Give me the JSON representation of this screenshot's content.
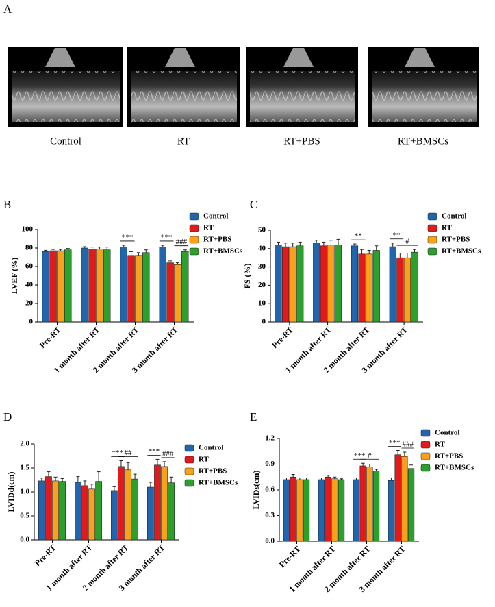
{
  "figure": {
    "label": "A",
    "captions": [
      "Control",
      "RT",
      "RT+PBS",
      "RT+BMSCs"
    ]
  },
  "chart_data": [
    {
      "type": "bar",
      "panel_label": "B",
      "ylabel": "LVEF (%)",
      "ylim": [
        0,
        100
      ],
      "yticks": [
        0,
        20,
        40,
        60,
        80,
        100
      ],
      "categories": [
        "Pre-RT",
        "1 month after RT",
        "2 month after RT",
        "3 month after RT"
      ],
      "series": [
        {
          "name": "Control",
          "color": "#2166ac",
          "values": [
            76,
            80,
            81,
            81
          ],
          "errors": [
            1.5,
            1.5,
            2,
            2
          ]
        },
        {
          "name": "RT",
          "color": "#e31a1c",
          "values": [
            77,
            79,
            72,
            64
          ],
          "errors": [
            1.5,
            2,
            4,
            2
          ]
        },
        {
          "name": "RT+PBS",
          "color": "#f9a11b",
          "values": [
            77,
            79,
            72,
            62
          ],
          "errors": [
            1.5,
            2,
            3,
            2
          ]
        },
        {
          "name": "RT+BMSCs",
          "color": "#2ca02c",
          "values": [
            78,
            78,
            75,
            76
          ],
          "errors": [
            1.5,
            3,
            3,
            2
          ]
        }
      ],
      "annotations": [
        "***",
        "***",
        "###"
      ]
    },
    {
      "type": "bar",
      "panel_label": "C",
      "ylabel": "FS (%)",
      "ylim": [
        0,
        50
      ],
      "yticks": [
        0,
        10,
        20,
        30,
        40,
        50
      ],
      "categories": [
        "Pre-RT",
        "1 month after RT",
        "2 month after RT",
        "3 month after RT"
      ],
      "series": [
        {
          "name": "Control",
          "color": "#2166ac",
          "values": [
            42,
            43,
            41.5,
            41
          ],
          "errors": [
            1.5,
            1.5,
            1,
            2
          ]
        },
        {
          "name": "RT",
          "color": "#e31a1c",
          "values": [
            41,
            41.5,
            37,
            35
          ],
          "errors": [
            2,
            2,
            2.5,
            2.5
          ]
        },
        {
          "name": "RT+PBS",
          "color": "#f9a11b",
          "values": [
            41,
            42,
            37,
            35
          ],
          "errors": [
            2,
            2.5,
            2,
            2.5
          ]
        },
        {
          "name": "RT+BMSCs",
          "color": "#2ca02c",
          "values": [
            41.5,
            42,
            39,
            38
          ],
          "errors": [
            2,
            3,
            2.5,
            1.5
          ]
        }
      ],
      "annotations": [
        "**",
        "**",
        "#"
      ]
    },
    {
      "type": "bar",
      "panel_label": "D",
      "ylabel": "LVIDd(cm)",
      "ylim": [
        0,
        2
      ],
      "yticks": [
        {
          "value": 0,
          "label": "0.0"
        },
        {
          "value": 0.5,
          "label": "0.5"
        },
        {
          "value": 1,
          "label": "1.0"
        },
        {
          "value": 1.5,
          "label": "1.5"
        },
        {
          "value": 2,
          "label": "2.0"
        }
      ],
      "categories": [
        "Pre-RT",
        "1 month after RT",
        "2 month after RT",
        "3 month after RT"
      ],
      "series": [
        {
          "name": "Control",
          "color": "#2166ac",
          "values": [
            1.23,
            1.2,
            1.03,
            1.1
          ],
          "errors": [
            0.06,
            0.12,
            0.08,
            0.1
          ]
        },
        {
          "name": "RT",
          "color": "#e31a1c",
          "values": [
            1.32,
            1.13,
            1.53,
            1.56
          ],
          "errors": [
            0.1,
            0.1,
            0.12,
            0.12
          ]
        },
        {
          "name": "RT+PBS",
          "color": "#f9a11b",
          "values": [
            1.23,
            1.06,
            1.46,
            1.53
          ],
          "errors": [
            0.08,
            0.1,
            0.15,
            0.1
          ]
        },
        {
          "name": "RT+BMSCs",
          "color": "#2ca02c",
          "values": [
            1.22,
            1.22,
            1.27,
            1.19
          ],
          "errors": [
            0.06,
            0.2,
            0.1,
            0.12
          ]
        }
      ],
      "annotations": [
        "***",
        "##",
        "***",
        "###"
      ]
    },
    {
      "type": "bar",
      "panel_label": "E",
      "ylabel": "LVIDs(cm)",
      "ylim": [
        0,
        1.2
      ],
      "yticks": [
        {
          "value": 0,
          "label": "0.0"
        },
        {
          "value": 0.3,
          "label": "0.3"
        },
        {
          "value": 0.6,
          "label": "0.6"
        },
        {
          "value": 0.9,
          "label": "0.9"
        },
        {
          "value": 1.2,
          "label": "1.2"
        }
      ],
      "categories": [
        "Pre-RT",
        "1 month after RT",
        "2 month after RT",
        "3 month after RT"
      ],
      "series": [
        {
          "name": "Control",
          "color": "#2166ac",
          "values": [
            0.72,
            0.72,
            0.72,
            0.71
          ],
          "errors": [
            0.02,
            0.02,
            0.02,
            0.03
          ]
        },
        {
          "name": "RT",
          "color": "#e31a1c",
          "values": [
            0.75,
            0.75,
            0.88,
            1.01
          ],
          "errors": [
            0.03,
            0.02,
            0.03,
            0.05
          ]
        },
        {
          "name": "RT+PBS",
          "color": "#f9a11b",
          "values": [
            0.72,
            0.73,
            0.87,
            0.99
          ],
          "errors": [
            0.02,
            0.02,
            0.03,
            0.05
          ]
        },
        {
          "name": "RT+BMSCs",
          "color": "#2ca02c",
          "values": [
            0.72,
            0.72,
            0.82,
            0.85
          ],
          "errors": [
            0.02,
            0.01,
            0.02,
            0.04
          ]
        }
      ],
      "annotations": [
        "***",
        "#",
        "***",
        "###"
      ]
    }
  ]
}
